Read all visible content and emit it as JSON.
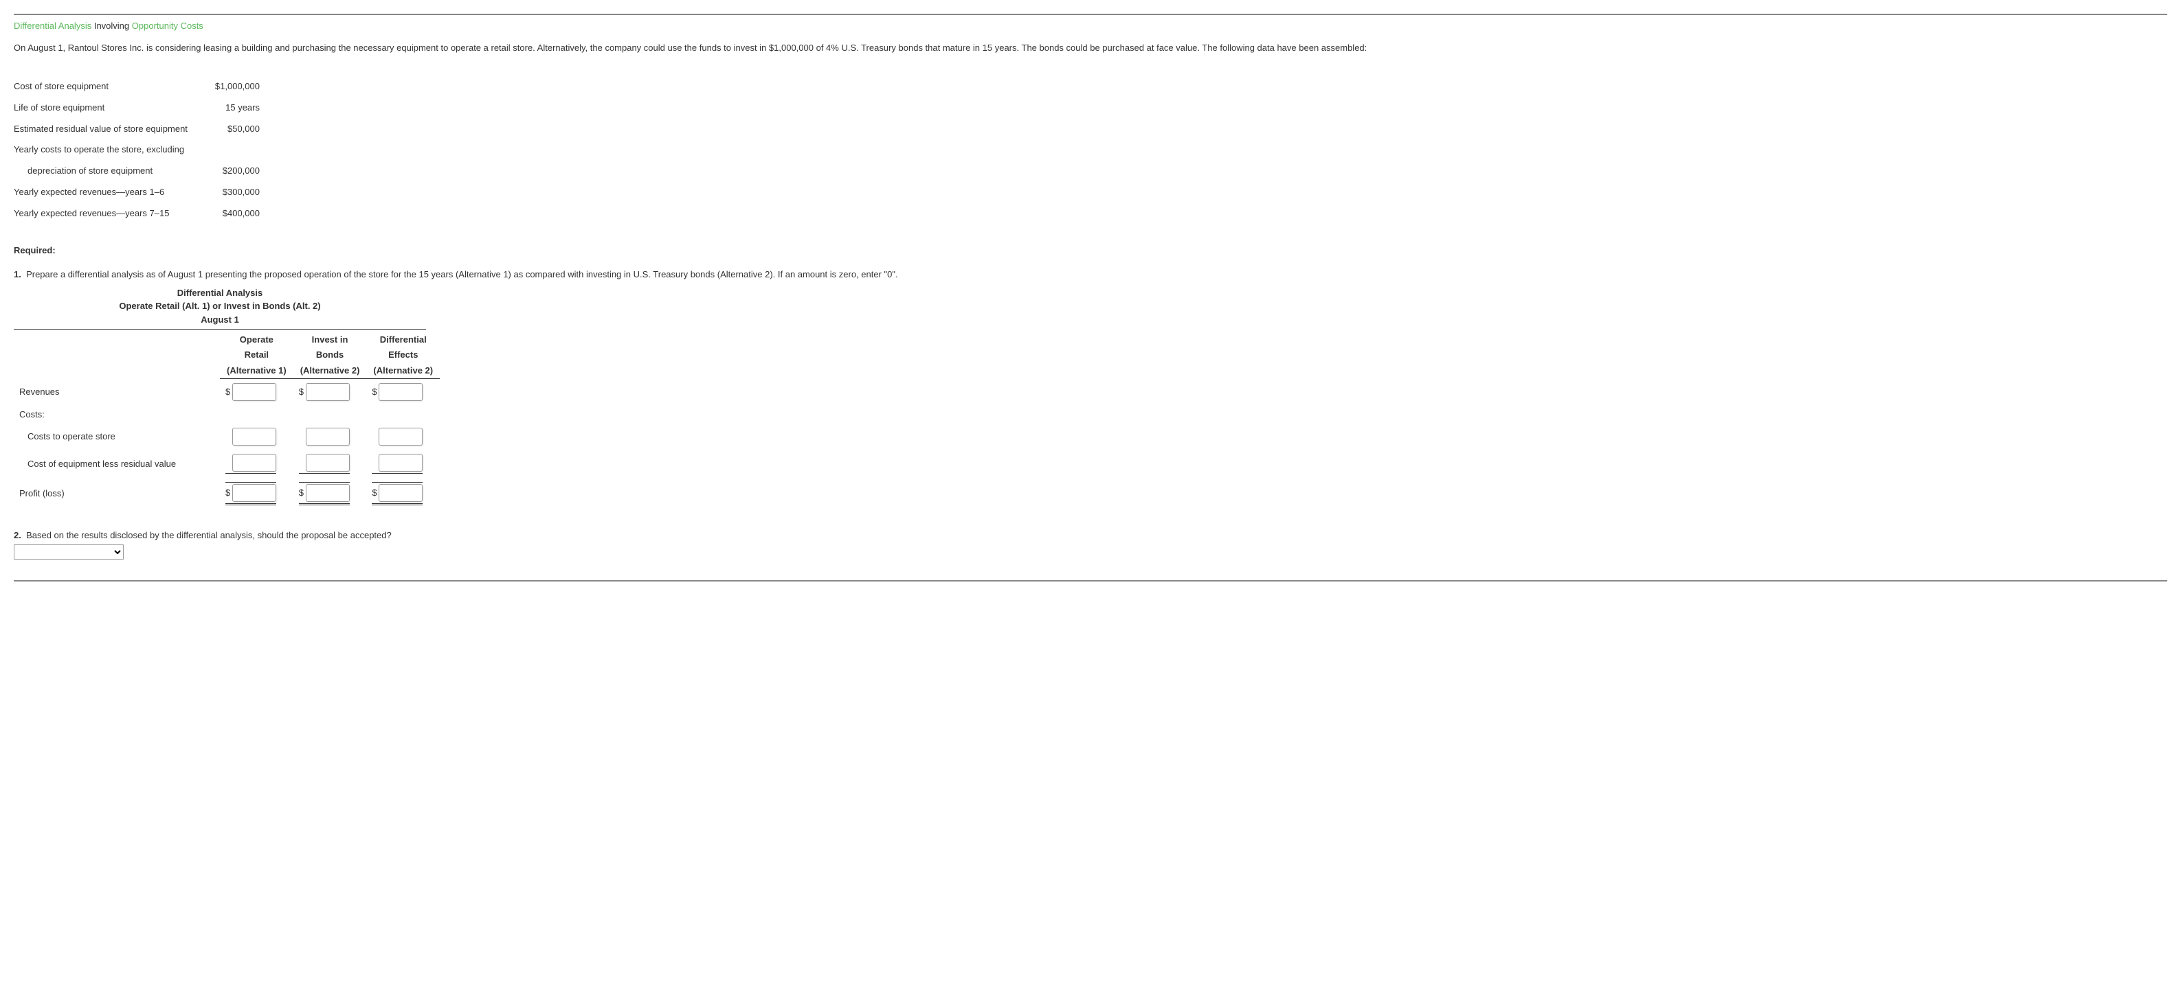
{
  "heading": {
    "part1": "Differential Analysis",
    "part2": " Involving ",
    "part3": "Opportunity Costs"
  },
  "intro": "On August 1, Rantoul Stores Inc. is considering leasing a building and purchasing the necessary equipment to operate a retail store. Alternatively, the company could use the funds to invest in $1,000,000 of 4% U.S. Treasury bonds that mature in 15 years. The bonds could be purchased at face value. The following data have been assembled:",
  "rows": [
    {
      "label": "Cost of store equipment",
      "value": "$1,000,000",
      "indent": false
    },
    {
      "label": "Life of store equipment",
      "value": "15 years",
      "indent": false
    },
    {
      "label": "Estimated residual value of store equipment",
      "value": "$50,000",
      "indent": false
    },
    {
      "label": "Yearly costs to operate the store, excluding",
      "value": "",
      "indent": false
    },
    {
      "label": "depreciation of store equipment",
      "value": "$200,000",
      "indent": true
    },
    {
      "label": "Yearly expected revenues—years 1–6",
      "value": "$300,000",
      "indent": false
    },
    {
      "label": "Yearly expected revenues—years 7–15",
      "value": "$400,000",
      "indent": false
    }
  ],
  "required_label": "Required:",
  "q1": {
    "num": "1.",
    "text": "Prepare a differential analysis as of August 1 presenting the proposed operation of the store for the 15 years (Alternative 1) as compared with investing in U.S. Treasury bonds (Alternative 2). If an amount is zero, enter \"0\"."
  },
  "header": {
    "line1": "Differential Analysis",
    "line2": "Operate Retail (Alt. 1) or Invest in Bonds (Alt. 2)",
    "line3": "August 1"
  },
  "cols": {
    "c1a": "Operate",
    "c1b": "Retail",
    "c1c": "(Alternative 1)",
    "c2a": "Invest in",
    "c2b": "Bonds",
    "c2c": "(Alternative 2)",
    "c3a": "Differential",
    "c3b": "Effects",
    "c3c": "(Alternative 2)"
  },
  "rowlabels": {
    "revenues": "Revenues",
    "costs": "Costs:",
    "cost_operate": "Costs to operate store",
    "cost_equip": "Cost of equipment less residual value",
    "profit": "Profit (loss)"
  },
  "q2": {
    "num": "2.",
    "text": "Based on the results disclosed by the differential analysis, should the proposal be accepted?"
  },
  "dollar": "$"
}
